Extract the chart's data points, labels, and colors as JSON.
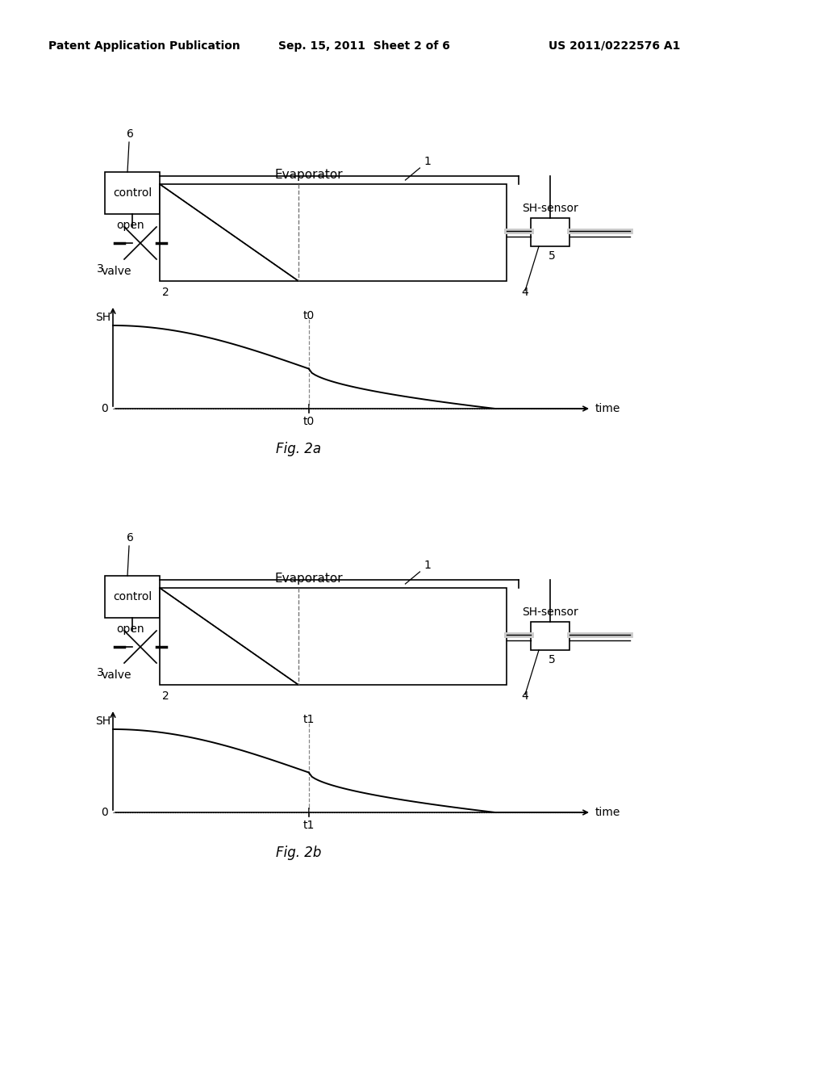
{
  "bg_color": "#ffffff",
  "header_left": "Patent Application Publication",
  "header_mid": "Sep. 15, 2011  Sheet 2 of 6",
  "header_right": "US 2011/0222576 A1",
  "fig2a_label": "Fig. 2a",
  "fig2b_label": "Fig. 2b",
  "control_label": "control",
  "open_label": "open",
  "valve_label": "valve",
  "evaporator_label": "Evaporator",
  "sh_sensor_label": "SH-sensor",
  "sh_label": "SH",
  "time_label": "time",
  "zero_label": "0",
  "t0_label": "t0",
  "t1_label": "t1",
  "label_1": "1",
  "label_2": "2",
  "label_3": "3",
  "label_4": "4",
  "label_5": "5",
  "label_6": "6",
  "line_color": "#000000",
  "gray_color": "#888888"
}
